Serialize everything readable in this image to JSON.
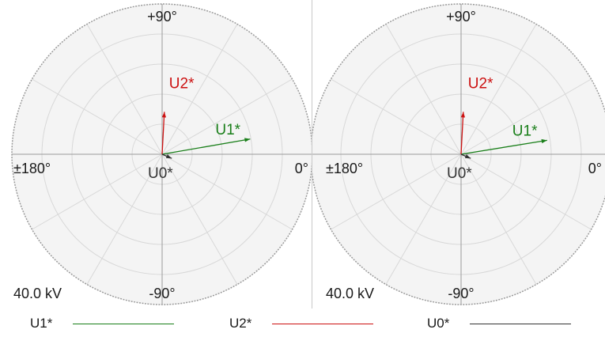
{
  "chart_data": [
    {
      "type": "polar-phasor",
      "angle_labels": {
        "top": "+90°",
        "right": "0°",
        "bottom": "-90°",
        "left": "±180°"
      },
      "scale_label": "40.0 kV",
      "scale_max": 40.0,
      "unit": "kV",
      "grid": true,
      "rings": 5,
      "spokes_deg": 30,
      "series": [
        {
          "name": "U1*",
          "magnitude": 23.8,
          "angle_deg": 9.8,
          "color": "#1a7f1a"
        },
        {
          "name": "U2*",
          "magnitude": 11.3,
          "angle_deg": 87.0,
          "color": "#cc1111"
        },
        {
          "name": "U0*",
          "magnitude": 2.8,
          "angle_deg": -23.0,
          "color": "#333333"
        }
      ]
    },
    {
      "type": "polar-phasor",
      "angle_labels": {
        "top": "+90°",
        "right": "0°",
        "bottom": "-90°",
        "left": "±180°"
      },
      "scale_label": "40.0 kV",
      "scale_max": 40.0,
      "unit": "kV",
      "grid": true,
      "rings": 5,
      "spokes_deg": 30,
      "series": [
        {
          "name": "U1*",
          "magnitude": 23.2,
          "angle_deg": 9.2,
          "color": "#1a7f1a"
        },
        {
          "name": "U2*",
          "magnitude": 11.3,
          "angle_deg": 87.0,
          "color": "#cc1111"
        },
        {
          "name": "U0*",
          "magnitude": 2.8,
          "angle_deg": -23.0,
          "color": "#333333"
        }
      ]
    }
  ],
  "legend": {
    "items": [
      {
        "label": "U1*",
        "color": "#1a7f1a"
      },
      {
        "label": "U2*",
        "color": "#cc1111"
      },
      {
        "label": "U0*",
        "color": "#333333"
      }
    ]
  },
  "colors": {
    "plot_background": "#f4f4f4",
    "grid": "#d8d8d8",
    "axis": "#9a9a9a",
    "border": "#9a9a9a",
    "divider": "#c8c8c8"
  }
}
